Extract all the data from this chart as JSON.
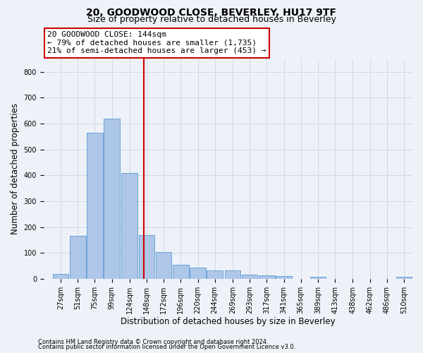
{
  "title": "20, GOODWOOD CLOSE, BEVERLEY, HU17 9TF",
  "subtitle": "Size of property relative to detached houses in Beverley",
  "xlabel": "Distribution of detached houses by size in Beverley",
  "ylabel": "Number of detached properties",
  "bar_color": "#aec6e8",
  "bar_edge_color": "#5b9bd5",
  "categories": [
    "27sqm",
    "51sqm",
    "75sqm",
    "99sqm",
    "124sqm",
    "148sqm",
    "172sqm",
    "196sqm",
    "220sqm",
    "244sqm",
    "269sqm",
    "293sqm",
    "317sqm",
    "341sqm",
    "365sqm",
    "389sqm",
    "413sqm",
    "438sqm",
    "462sqm",
    "486sqm",
    "510sqm"
  ],
  "bin_edges": [
    27,
    51,
    75,
    99,
    124,
    148,
    172,
    196,
    220,
    244,
    269,
    293,
    317,
    341,
    365,
    389,
    413,
    438,
    462,
    486,
    510
  ],
  "values": [
    20,
    165,
    565,
    620,
    410,
    170,
    103,
    55,
    42,
    32,
    32,
    15,
    12,
    10,
    0,
    8,
    0,
    0,
    0,
    0,
    8
  ],
  "vline_x": 144,
  "vline_color": "#cc0000",
  "annotation_line1": "20 GOODWOOD CLOSE: 144sqm",
  "annotation_line2": "← 79% of detached houses are smaller (1,735)",
  "annotation_line3": "21% of semi-detached houses are larger (453) →",
  "annotation_box_color": "#ffffff",
  "annotation_box_edge": "#cc0000",
  "ylim": [
    0,
    850
  ],
  "yticks": [
    0,
    100,
    200,
    300,
    400,
    500,
    600,
    700,
    800
  ],
  "grid_color": "#d0d8e8",
  "background_color": "#eef2f8",
  "plot_bg_color": "#eef2f8",
  "footer_line1": "Contains HM Land Registry data © Crown copyright and database right 2024.",
  "footer_line2": "Contains public sector information licensed under the Open Government Licence v3.0.",
  "title_fontsize": 10,
  "subtitle_fontsize": 9,
  "axis_label_fontsize": 8.5,
  "tick_fontsize": 7,
  "annotation_fontsize": 8,
  "footer_fontsize": 6
}
